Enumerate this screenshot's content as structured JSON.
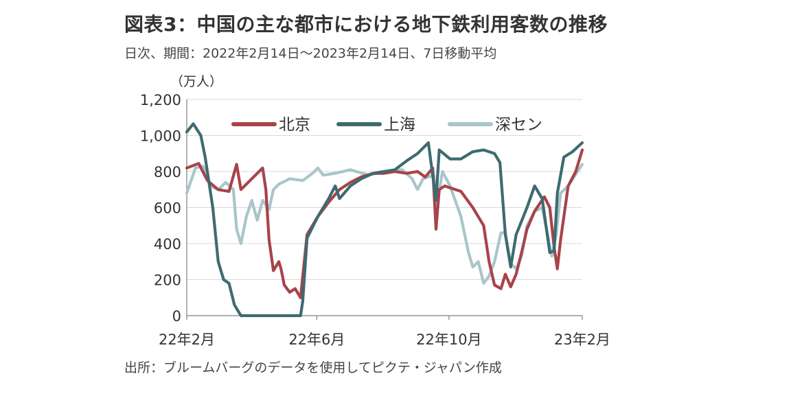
{
  "title": "図表3：中国の主な都市における地下鉄利用客数の推移",
  "subtitle": "日次、期間：2022年2月14日～2023年2月14日、7日移動平均",
  "source": "出所：ブルームバーグのデータを使用してピクテ・ジャパン作成",
  "chart_data": {
    "type": "line",
    "ylabel": "（万人）",
    "ylim": [
      0,
      1200
    ],
    "yticks": [
      0,
      200,
      400,
      600,
      800,
      1000,
      1200
    ],
    "yticklabels": [
      "0",
      "200",
      "400",
      "600",
      "800",
      "1,000",
      "1,200"
    ],
    "xlim": [
      "2022-02-14",
      "2023-02-14"
    ],
    "xticks": [
      "2022-02-14",
      "2022-06-14",
      "2022-10-14",
      "2023-02-14"
    ],
    "xticklabels": [
      "22年2月",
      "22年6月",
      "22年10月",
      "23年2月"
    ],
    "grid": true,
    "legend_position": "top",
    "series": [
      {
        "name": "北京",
        "color": "#a8434a",
        "x": [
          "2022-02-14",
          "2022-02-25",
          "2022-03-05",
          "2022-03-15",
          "2022-03-25",
          "2022-04-01",
          "2022-04-05",
          "2022-04-15",
          "2022-04-25",
          "2022-04-28",
          "2022-05-01",
          "2022-05-05",
          "2022-05-10",
          "2022-05-12",
          "2022-05-15",
          "2022-05-20",
          "2022-05-25",
          "2022-05-30",
          "2022-06-05",
          "2022-06-15",
          "2022-06-25",
          "2022-07-05",
          "2022-07-15",
          "2022-07-25",
          "2022-08-05",
          "2022-08-15",
          "2022-08-25",
          "2022-09-05",
          "2022-09-15",
          "2022-09-22",
          "2022-09-25",
          "2022-09-29",
          "2022-10-02",
          "2022-10-05",
          "2022-10-10",
          "2022-10-15",
          "2022-10-25",
          "2022-11-05",
          "2022-11-15",
          "2022-11-20",
          "2022-11-25",
          "2022-12-01",
          "2022-12-05",
          "2022-12-10",
          "2022-12-15",
          "2022-12-20",
          "2022-12-25",
          "2023-01-01",
          "2023-01-10",
          "2023-01-15",
          "2023-01-19",
          "2023-01-22",
          "2023-01-25",
          "2023-02-01",
          "2023-02-08",
          "2023-02-14"
        ],
        "values": [
          820,
          845,
          750,
          700,
          690,
          840,
          700,
          760,
          820,
          700,
          420,
          250,
          300,
          260,
          170,
          130,
          150,
          100,
          450,
          550,
          630,
          700,
          740,
          770,
          790,
          790,
          800,
          790,
          800,
          770,
          790,
          820,
          480,
          700,
          720,
          710,
          690,
          600,
          500,
          300,
          170,
          150,
          230,
          160,
          230,
          350,
          480,
          580,
          660,
          600,
          380,
          260,
          420,
          720,
          800,
          920
        ]
      },
      {
        "name": "上海",
        "color": "#3e6b70",
        "x": [
          "2022-02-14",
          "2022-02-20",
          "2022-02-27",
          "2022-03-03",
          "2022-03-10",
          "2022-03-15",
          "2022-03-20",
          "2022-03-25",
          "2022-03-30",
          "2022-04-05",
          "2022-04-10",
          "2022-04-20",
          "2022-05-01",
          "2022-05-15",
          "2022-05-30",
          "2022-06-01",
          "2022-06-05",
          "2022-06-15",
          "2022-06-25",
          "2022-07-01",
          "2022-07-05",
          "2022-07-15",
          "2022-07-25",
          "2022-08-05",
          "2022-08-15",
          "2022-08-25",
          "2022-09-05",
          "2022-09-15",
          "2022-09-25",
          "2022-10-02",
          "2022-10-05",
          "2022-10-15",
          "2022-10-25",
          "2022-11-05",
          "2022-11-15",
          "2022-11-25",
          "2022-11-30",
          "2022-12-05",
          "2022-12-10",
          "2022-12-15",
          "2022-12-25",
          "2023-01-01",
          "2023-01-08",
          "2023-01-15",
          "2023-01-19",
          "2023-01-22",
          "2023-01-28",
          "2023-02-05",
          "2023-02-14"
        ],
        "values": [
          1020,
          1065,
          1000,
          880,
          600,
          300,
          200,
          180,
          60,
          0,
          0,
          0,
          0,
          0,
          0,
          80,
          430,
          550,
          650,
          720,
          650,
          720,
          760,
          790,
          800,
          810,
          860,
          900,
          960,
          640,
          920,
          870,
          870,
          910,
          920,
          900,
          850,
          450,
          270,
          450,
          600,
          720,
          650,
          350,
          360,
          680,
          880,
          910,
          960
        ]
      },
      {
        "name": "深セン",
        "color": "#a9c6c9",
        "x": [
          "2022-02-14",
          "2022-02-22",
          "2022-03-01",
          "2022-03-08",
          "2022-03-15",
          "2022-03-22",
          "2022-03-29",
          "2022-04-01",
          "2022-04-05",
          "2022-04-10",
          "2022-04-15",
          "2022-04-20",
          "2022-04-25",
          "2022-05-01",
          "2022-05-05",
          "2022-05-10",
          "2022-05-20",
          "2022-06-01",
          "2022-06-10",
          "2022-06-15",
          "2022-06-20",
          "2022-07-01",
          "2022-07-15",
          "2022-08-01",
          "2022-08-15",
          "2022-09-01",
          "2022-09-10",
          "2022-09-15",
          "2022-09-20",
          "2022-09-25",
          "2022-09-30",
          "2022-10-03",
          "2022-10-08",
          "2022-10-15",
          "2022-10-25",
          "2022-11-01",
          "2022-11-05",
          "2022-11-10",
          "2022-11-15",
          "2022-11-20",
          "2022-11-25",
          "2022-12-01",
          "2022-12-05",
          "2022-12-10",
          "2022-12-15",
          "2022-12-20",
          "2022-12-25",
          "2023-01-01",
          "2023-01-08",
          "2023-01-12",
          "2023-01-17",
          "2023-01-21",
          "2023-01-25",
          "2023-02-01",
          "2023-02-14"
        ],
        "values": [
          680,
          820,
          830,
          720,
          700,
          740,
          700,
          480,
          400,
          550,
          640,
          530,
          640,
          590,
          700,
          730,
          760,
          750,
          790,
          820,
          780,
          790,
          810,
          780,
          800,
          810,
          760,
          700,
          760,
          770,
          780,
          620,
          800,
          720,
          550,
          350,
          270,
          300,
          180,
          220,
          300,
          460,
          460,
          290,
          260,
          330,
          500,
          580,
          600,
          480,
          330,
          450,
          680,
          720,
          840
        ]
      }
    ]
  }
}
